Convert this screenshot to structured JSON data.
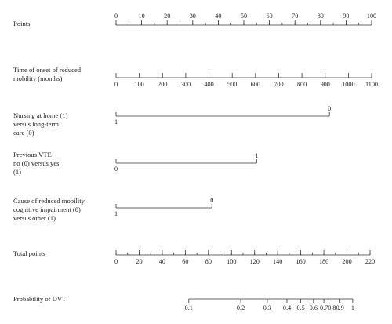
{
  "chart_data": {
    "type": "nomogram",
    "title": "",
    "rows": [
      {
        "kind": "scale",
        "label_lines": [
          "Points"
        ],
        "ticks": [
          0,
          10,
          20,
          30,
          40,
          50,
          60,
          70,
          80,
          90,
          100
        ],
        "minor_step": 5,
        "range": [
          0,
          100
        ]
      },
      {
        "kind": "scale",
        "label_lines": [
          "Time of onset of reduced",
          "mobility  (months)"
        ],
        "ticks": [
          0,
          100,
          200,
          300,
          400,
          500,
          600,
          700,
          800,
          900,
          1000,
          1100
        ],
        "range": [
          0,
          1100
        ],
        "extent_points": [
          0,
          100
        ]
      },
      {
        "kind": "binary",
        "label_lines": [
          "Nursing at home (1)",
          "versus long-term",
          "care (0)"
        ],
        "start": {
          "label": "1",
          "points": 0
        },
        "end": {
          "label": "0",
          "points": 83.5
        }
      },
      {
        "kind": "binary",
        "label_lines": [
          "Previous VTE",
          "no (0) versus yes",
          "(1)"
        ],
        "start": {
          "label": "0",
          "points": 0
        },
        "end": {
          "label": "1",
          "points": 55
        }
      },
      {
        "kind": "binary",
        "label_lines": [
          "Cause of reduced mobility",
          "cognitive impairment (0)",
          "versus other (1)"
        ],
        "start": {
          "label": "1",
          "points": 0
        },
        "end": {
          "label": "0",
          "points": 37.5
        }
      },
      {
        "kind": "scale",
        "label_lines": [
          "Total points"
        ],
        "ticks": [
          0,
          20,
          40,
          60,
          80,
          100,
          120,
          140,
          160,
          180,
          200,
          220
        ],
        "minor_step": 10,
        "range": [
          0,
          220
        ]
      },
      {
        "kind": "probability",
        "label_lines": [
          "Probability of  DVT"
        ],
        "ticks": [
          {
            "label": "0.1",
            "total_points": 63
          },
          {
            "label": "0.2",
            "total_points": 108
          },
          {
            "label": "0.3",
            "total_points": 131
          },
          {
            "label": "0.4",
            "total_points": 148
          },
          {
            "label": "0.5",
            "total_points": 160
          },
          {
            "label": "0.6",
            "total_points": 171
          },
          {
            "label": "0.7",
            "total_points": 180
          },
          {
            "label": "0.8",
            "total_points": 187
          },
          {
            "label": "0.9",
            "total_points": 194
          },
          {
            "label": "1",
            "total_points": 205
          }
        ]
      }
    ]
  }
}
